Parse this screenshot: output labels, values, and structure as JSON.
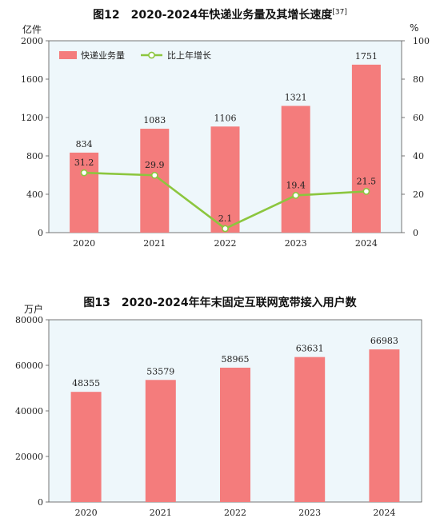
{
  "chart_data": [
    {
      "type": "bar+line",
      "title": "图12　2020-2024年快递业务量及其增长速度",
      "title_note": "[37]",
      "categories": [
        "2020",
        "2021",
        "2022",
        "2023",
        "2024"
      ],
      "series": [
        {
          "name": "快递业务量",
          "type": "bar",
          "axis": "left",
          "values": [
            834,
            1083,
            1106,
            1321,
            1751
          ]
        },
        {
          "name": "比上年增长",
          "type": "line",
          "axis": "right",
          "values": [
            31.2,
            29.9,
            2.1,
            19.4,
            21.5
          ]
        }
      ],
      "ylabel_left": "亿件",
      "ylabel_right": "%",
      "ylim_left": [
        0,
        2000
      ],
      "ylim_right": [
        0,
        100
      ],
      "yticks_left": [
        0,
        400,
        800,
        1200,
        1600,
        2000
      ],
      "yticks_right": [
        0,
        20,
        40,
        60,
        80,
        100
      ],
      "legend_position": "top-left",
      "grid": false,
      "colors": {
        "bar": "#f47c7c",
        "line": "#8cc63e",
        "background": "#eef7fb"
      }
    },
    {
      "type": "bar",
      "title": "图13　2020-2024年年末固定互联网宽带接入用户数",
      "categories": [
        "2020",
        "2021",
        "2022",
        "2023",
        "2024"
      ],
      "values": [
        48355,
        53579,
        58965,
        63631,
        66983
      ],
      "ylabel": "万户",
      "ylim": [
        0,
        80000
      ],
      "yticks": [
        0,
        20000,
        40000,
        60000,
        80000
      ],
      "grid": false,
      "colors": {
        "bar": "#f47c7c",
        "background": "#eef7fb"
      }
    }
  ]
}
